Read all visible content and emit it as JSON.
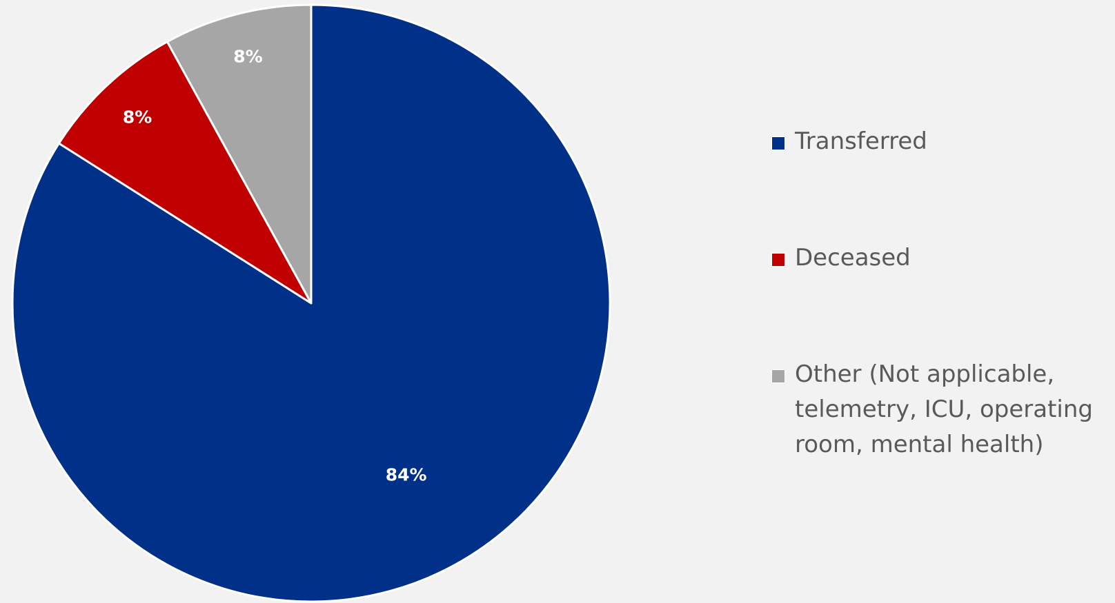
{
  "chart_data": {
    "type": "pie",
    "categories": [
      "Transferred",
      "Deceased",
      "Other (Not applicable, telemetry, ICU, operating room, mental health)"
    ],
    "values": [
      84,
      8,
      8
    ],
    "value_labels": [
      "84%",
      "8%",
      "8%"
    ],
    "colors": [
      "#003087",
      "#c00000",
      "#a6a6a6"
    ],
    "legend": "right"
  }
}
